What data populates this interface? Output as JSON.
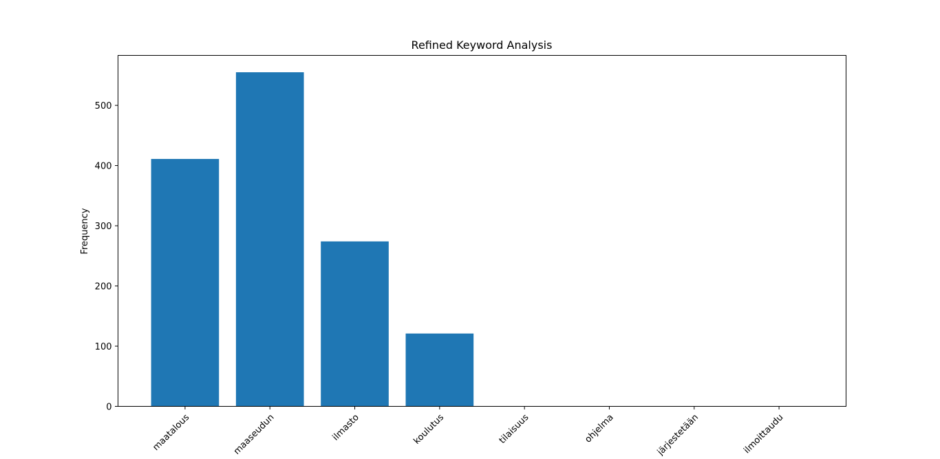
{
  "chart_data": {
    "type": "bar",
    "title": "Refined Keyword Analysis",
    "xlabel": "",
    "ylabel": "Frequency",
    "categories": [
      "maatalous",
      "maaseudun",
      "ilmasto",
      "koulutus",
      "tilaisuus",
      "ohjelma",
      "järjestetään",
      "ilmoittaudu"
    ],
    "values": [
      411,
      555,
      274,
      121,
      0,
      0,
      0,
      0
    ],
    "ylim": [
      0,
      583
    ],
    "yticks": [
      0,
      100,
      200,
      300,
      400,
      500
    ],
    "ytick_labels": [
      "0",
      "100",
      "200",
      "300",
      "400",
      "500"
    ],
    "xtick_rotation_deg": 45,
    "grid": false,
    "legend": "none",
    "bar_color": "#1f77b4"
  }
}
